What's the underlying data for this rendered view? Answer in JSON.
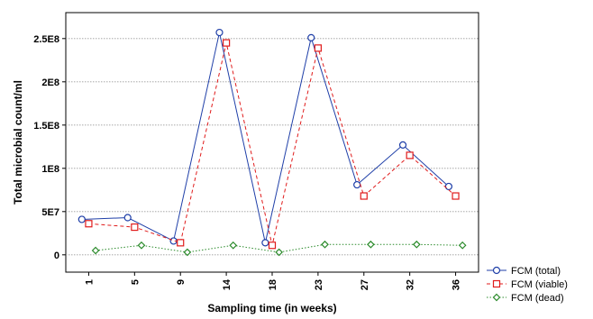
{
  "chart_data": {
    "type": "line",
    "xlabel": "Sampling time (in weeks)",
    "ylabel": "Total microbial count/ml",
    "categories": [
      "1",
      "5",
      "9",
      "14",
      "18",
      "23",
      "27",
      "32",
      "36"
    ],
    "ylim": [
      -20000000,
      280000000
    ],
    "yticks": [
      0,
      50000000,
      100000000,
      150000000,
      200000000,
      250000000
    ],
    "ytick_labels": [
      "0",
      "5E7",
      "1E8",
      "1.5E8",
      "2E8",
      "2.5E8"
    ],
    "grid": "horizontal-dotted",
    "legend_position": "bottom-right",
    "series": [
      {
        "name": "FCM (total)",
        "color": "#1f3fa8",
        "line_style": "solid",
        "marker": "circle",
        "offset": -0.15,
        "values": [
          41000000,
          43000000,
          16000000,
          257000000,
          14000000,
          251000000,
          81000000,
          127000000,
          79000000
        ]
      },
      {
        "name": "FCM (viable)",
        "color": "#e01b1b",
        "line_style": "dashed",
        "marker": "square",
        "offset": 0.0,
        "values": [
          36000000,
          32000000,
          14000000,
          245000000,
          11000000,
          239000000,
          68000000,
          115000000,
          68000000
        ]
      },
      {
        "name": "FCM (dead)",
        "color": "#2a8a2a",
        "line_style": "dotted",
        "marker": "diamond",
        "offset": 0.15,
        "values": [
          5000000,
          11000000,
          3000000,
          11000000,
          3000000,
          12000000,
          12000000,
          12000000,
          11000000
        ]
      }
    ]
  }
}
